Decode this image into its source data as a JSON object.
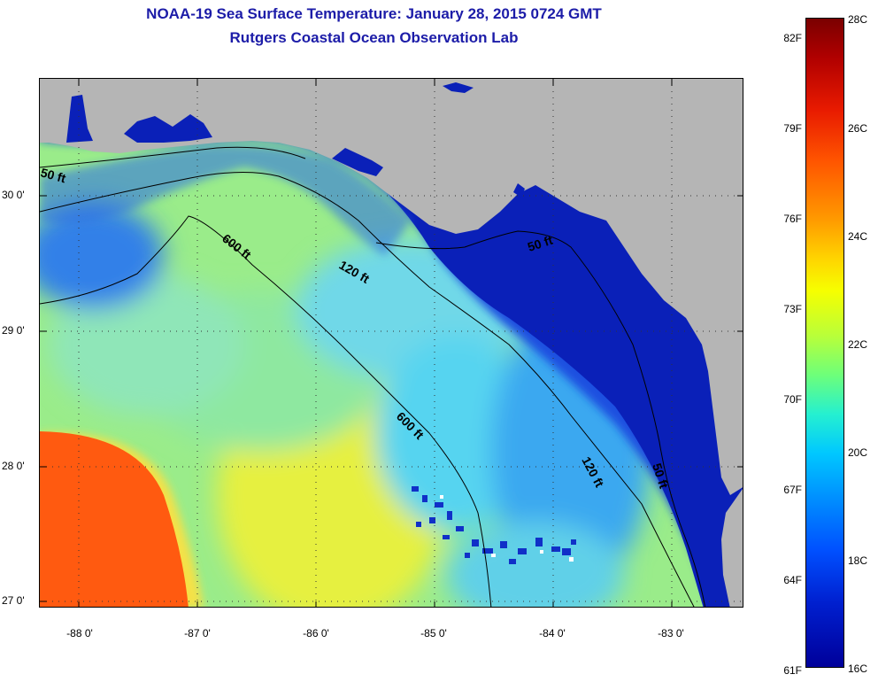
{
  "title": {
    "line1": "NOAA-19 Sea Surface Temperature:  January 28, 2015 0724 GMT",
    "line2": "Rutgers Coastal Ocean Observation Lab"
  },
  "map": {
    "x_ticks": [
      "-88 0'",
      "-87 0'",
      "-86 0'",
      "-85 0'",
      "-84 0'",
      "-83 0'"
    ],
    "y_ticks": [
      "30 0'",
      "29 0'",
      "28 0'",
      "27 0'"
    ],
    "contour_labels": {
      "ft50_a": "50 ft",
      "ft120_a": "120 ft",
      "ft600_a": "600 ft",
      "ft600_b": "600 ft",
      "ft120_b": "120 ft",
      "ft50_b": "50 ft",
      "ft50_c": "50 ft"
    },
    "colors": {
      "land": "#b5b5b5",
      "deep_blue": "#0010a8",
      "cyan": "#40e0e8",
      "green": "#a8f070",
      "yellow": "#f0f030",
      "orange": "#ff5a10"
    }
  },
  "colorbar": {
    "fahrenheit": [
      "82F",
      "79F",
      "76F",
      "73F",
      "70F",
      "67F",
      "64F",
      "61F"
    ],
    "celsius": [
      "28C",
      "26C",
      "24C",
      "22C",
      "20C",
      "18C",
      "16C"
    ]
  }
}
